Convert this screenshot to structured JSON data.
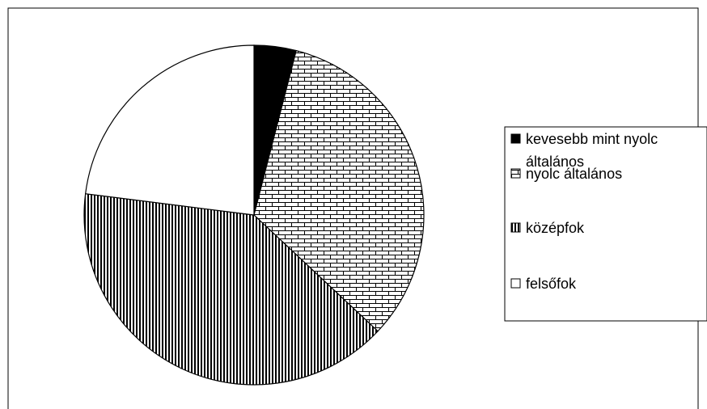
{
  "chart_data": {
    "type": "pie",
    "title": "",
    "slices": [
      {
        "label": "kevesebb mint nyolc általános",
        "value": 4,
        "pattern": "solid-black"
      },
      {
        "label": "nyolc általános",
        "value": 33,
        "pattern": "brick"
      },
      {
        "label": "középfok",
        "value": 40,
        "pattern": "vertical-lines"
      },
      {
        "label": "felsőfok",
        "value": 23,
        "pattern": "white"
      }
    ],
    "start_angle": "12 o'clock",
    "direction": "clockwise",
    "legend": {
      "position": "right",
      "items": [
        {
          "lines": [
            "kevesebb mint nyolc",
            "általános"
          ]
        },
        {
          "lines": [
            "nyolc általános"
          ]
        },
        {
          "lines": [
            "középfok"
          ]
        },
        {
          "lines": [
            "felsőfok"
          ]
        }
      ]
    },
    "colors": {
      "stroke": "#000000",
      "background": "#ffffff"
    }
  }
}
